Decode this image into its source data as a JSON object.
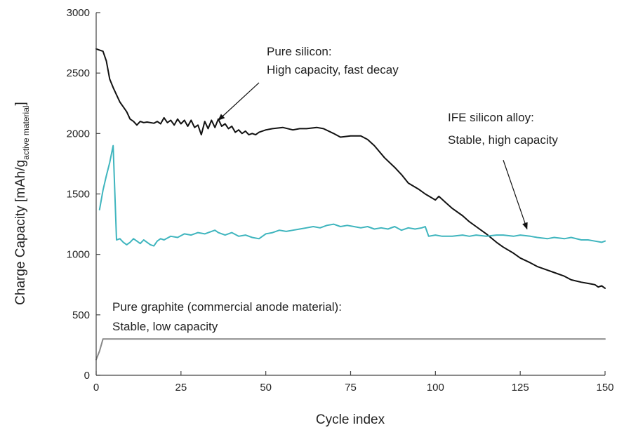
{
  "chart_data": {
    "type": "line",
    "xlabel": "Cycle index",
    "ylabel": {
      "main": "Charge Capacity [mAh/g",
      "subscript": "active material",
      "close": "]"
    },
    "xlim": [
      0,
      150
    ],
    "ylim": [
      0,
      3000
    ],
    "xticks": [
      0,
      25,
      50,
      75,
      100,
      125,
      150
    ],
    "yticks": [
      0,
      500,
      1000,
      1500,
      2000,
      2500,
      3000
    ],
    "grid": false,
    "series": [
      {
        "key": "pure-silicon",
        "color": "#111111",
        "points": [
          [
            0,
            2700
          ],
          [
            1,
            2690
          ],
          [
            2,
            2680
          ],
          [
            3,
            2600
          ],
          [
            4,
            2450
          ],
          [
            5,
            2380
          ],
          [
            6,
            2320
          ],
          [
            7,
            2260
          ],
          [
            8,
            2220
          ],
          [
            9,
            2180
          ],
          [
            10,
            2120
          ],
          [
            11,
            2100
          ],
          [
            12,
            2070
          ],
          [
            13,
            2100
          ],
          [
            14,
            2090
          ],
          [
            15,
            2095
          ],
          [
            16,
            2090
          ],
          [
            17,
            2085
          ],
          [
            18,
            2100
          ],
          [
            19,
            2080
          ],
          [
            20,
            2130
          ],
          [
            21,
            2090
          ],
          [
            22,
            2110
          ],
          [
            23,
            2070
          ],
          [
            24,
            2120
          ],
          [
            25,
            2080
          ],
          [
            26,
            2110
          ],
          [
            27,
            2060
          ],
          [
            28,
            2110
          ],
          [
            29,
            2050
          ],
          [
            30,
            2070
          ],
          [
            31,
            1990
          ],
          [
            32,
            2100
          ],
          [
            33,
            2040
          ],
          [
            34,
            2110
          ],
          [
            35,
            2050
          ],
          [
            36,
            2120
          ],
          [
            37,
            2060
          ],
          [
            38,
            2080
          ],
          [
            39,
            2040
          ],
          [
            40,
            2060
          ],
          [
            41,
            2010
          ],
          [
            42,
            2030
          ],
          [
            43,
            2000
          ],
          [
            44,
            2020
          ],
          [
            45,
            1990
          ],
          [
            46,
            2000
          ],
          [
            47,
            1990
          ],
          [
            48,
            2010
          ],
          [
            50,
            2030
          ],
          [
            52,
            2040
          ],
          [
            55,
            2050
          ],
          [
            58,
            2030
          ],
          [
            60,
            2040
          ],
          [
            62,
            2040
          ],
          [
            65,
            2050
          ],
          [
            67,
            2040
          ],
          [
            70,
            2000
          ],
          [
            72,
            1970
          ],
          [
            75,
            1980
          ],
          [
            78,
            1980
          ],
          [
            80,
            1950
          ],
          [
            82,
            1900
          ],
          [
            85,
            1800
          ],
          [
            88,
            1720
          ],
          [
            90,
            1660
          ],
          [
            92,
            1590
          ],
          [
            95,
            1540
          ],
          [
            97,
            1500
          ],
          [
            100,
            1450
          ],
          [
            101,
            1480
          ],
          [
            103,
            1430
          ],
          [
            105,
            1380
          ],
          [
            108,
            1320
          ],
          [
            110,
            1270
          ],
          [
            112,
            1230
          ],
          [
            115,
            1170
          ],
          [
            118,
            1100
          ],
          [
            120,
            1060
          ],
          [
            123,
            1010
          ],
          [
            125,
            970
          ],
          [
            128,
            930
          ],
          [
            130,
            900
          ],
          [
            133,
            870
          ],
          [
            135,
            850
          ],
          [
            138,
            820
          ],
          [
            140,
            790
          ],
          [
            143,
            770
          ],
          [
            145,
            760
          ],
          [
            147,
            750
          ],
          [
            148,
            730
          ],
          [
            149,
            740
          ],
          [
            150,
            720
          ]
        ]
      },
      {
        "key": "ife-silicon-alloy",
        "color": "#3fb5be",
        "points": [
          [
            1,
            1370
          ],
          [
            2,
            1530
          ],
          [
            3,
            1650
          ],
          [
            4,
            1760
          ],
          [
            5,
            1900
          ],
          [
            6,
            1120
          ],
          [
            7,
            1130
          ],
          [
            8,
            1100
          ],
          [
            9,
            1080
          ],
          [
            10,
            1100
          ],
          [
            11,
            1130
          ],
          [
            12,
            1110
          ],
          [
            13,
            1090
          ],
          [
            14,
            1120
          ],
          [
            15,
            1100
          ],
          [
            16,
            1080
          ],
          [
            17,
            1070
          ],
          [
            18,
            1110
          ],
          [
            19,
            1130
          ],
          [
            20,
            1120
          ],
          [
            22,
            1150
          ],
          [
            24,
            1140
          ],
          [
            26,
            1170
          ],
          [
            28,
            1160
          ],
          [
            30,
            1180
          ],
          [
            32,
            1170
          ],
          [
            34,
            1190
          ],
          [
            35,
            1200
          ],
          [
            36,
            1180
          ],
          [
            38,
            1160
          ],
          [
            40,
            1180
          ],
          [
            42,
            1150
          ],
          [
            44,
            1160
          ],
          [
            46,
            1140
          ],
          [
            48,
            1130
          ],
          [
            50,
            1170
          ],
          [
            52,
            1180
          ],
          [
            54,
            1200
          ],
          [
            56,
            1190
          ],
          [
            58,
            1200
          ],
          [
            60,
            1210
          ],
          [
            62,
            1220
          ],
          [
            64,
            1230
          ],
          [
            66,
            1220
          ],
          [
            68,
            1240
          ],
          [
            70,
            1250
          ],
          [
            72,
            1230
          ],
          [
            74,
            1240
          ],
          [
            76,
            1230
          ],
          [
            78,
            1220
          ],
          [
            80,
            1230
          ],
          [
            82,
            1210
          ],
          [
            84,
            1220
          ],
          [
            86,
            1210
          ],
          [
            88,
            1230
          ],
          [
            90,
            1200
          ],
          [
            92,
            1220
          ],
          [
            94,
            1210
          ],
          [
            96,
            1220
          ],
          [
            97,
            1230
          ],
          [
            98,
            1150
          ],
          [
            100,
            1160
          ],
          [
            102,
            1150
          ],
          [
            105,
            1150
          ],
          [
            108,
            1160
          ],
          [
            110,
            1150
          ],
          [
            112,
            1160
          ],
          [
            115,
            1150
          ],
          [
            118,
            1160
          ],
          [
            120,
            1160
          ],
          [
            123,
            1150
          ],
          [
            125,
            1160
          ],
          [
            128,
            1150
          ],
          [
            130,
            1140
          ],
          [
            133,
            1130
          ],
          [
            135,
            1140
          ],
          [
            138,
            1130
          ],
          [
            140,
            1140
          ],
          [
            143,
            1120
          ],
          [
            145,
            1120
          ],
          [
            147,
            1110
          ],
          [
            149,
            1100
          ],
          [
            150,
            1110
          ]
        ]
      },
      {
        "key": "pure-graphite",
        "color": "#888888",
        "points": [
          [
            0,
            130
          ],
          [
            1,
            200
          ],
          [
            2,
            300
          ],
          [
            150,
            300
          ]
        ]
      }
    ],
    "annotations": [
      {
        "key": "silicon",
        "lines": [
          "Pure silicon:",
          "High capacity, fast decay"
        ],
        "arrow_from": [
          48,
          2420
        ],
        "arrow_to": [
          36,
          2110
        ]
      },
      {
        "key": "alloy",
        "lines": [
          "IFE silicon alloy:",
          "Stable, high capacity"
        ],
        "arrow_from": [
          120,
          1780
        ],
        "arrow_to": [
          127,
          1210
        ]
      },
      {
        "key": "graphite",
        "lines": [
          "Pure graphite (commercial anode material):",
          "Stable, low capacity"
        ]
      }
    ]
  }
}
